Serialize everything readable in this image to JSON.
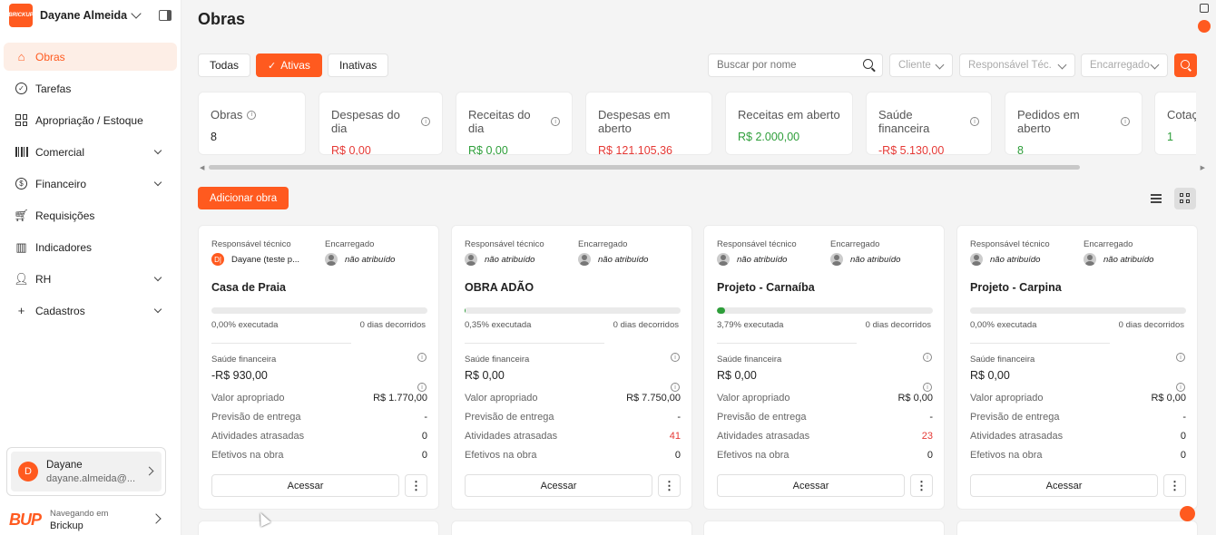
{
  "sidebar": {
    "user_name": "Dayane Almeida",
    "logo_text": "BRICKUP",
    "items": [
      {
        "label": "Obras",
        "icon": "building-icon",
        "active": true
      },
      {
        "label": "Tarefas",
        "icon": "check-circle-icon"
      },
      {
        "label": "Apropriação / Estoque",
        "icon": "grid-icon"
      },
      {
        "label": "Comercial",
        "icon": "barcode-icon",
        "expandable": true
      },
      {
        "label": "Financeiro",
        "icon": "dollar-circle-icon",
        "expandable": true
      },
      {
        "label": "Requisições",
        "icon": "cart-icon"
      },
      {
        "label": "Indicadores",
        "icon": "bar-chart-icon"
      },
      {
        "label": "RH",
        "icon": "person-icon",
        "expandable": true
      },
      {
        "label": "Cadastros",
        "icon": "plus-icon",
        "expandable": true
      }
    ],
    "profile": {
      "initial": "D",
      "name": "Dayane",
      "email": "dayane.almeida@..."
    },
    "brand": {
      "logo": "BUP",
      "sub": "Navegando em",
      "name": "Brickup"
    }
  },
  "header": {
    "title": "Obras"
  },
  "filters": {
    "tabs": [
      {
        "label": "Todas",
        "active": false
      },
      {
        "label": "Ativas",
        "active": true
      },
      {
        "label": "Inativas",
        "active": false
      }
    ],
    "search_placeholder": "Buscar por nome",
    "cliente": "Cliente",
    "responsavel": "Responsável Téc.",
    "encarregado": "Encarregado"
  },
  "stats": [
    {
      "label": "Obras",
      "value": "8",
      "color": "default",
      "info": true
    },
    {
      "label": "Despesas do dia",
      "value": "R$ 0,00",
      "color": "red",
      "info": true
    },
    {
      "label": "Receitas do dia",
      "value": "R$ 0,00",
      "color": "green",
      "info": true
    },
    {
      "label": "Despesas em aberto",
      "value": "R$ 121.105,36",
      "color": "red",
      "info": false
    },
    {
      "label": "Receitas em aberto",
      "value": "R$ 2.000,00",
      "color": "green",
      "info": false
    },
    {
      "label": "Saúde financeira",
      "value": "-R$ 5.130,00",
      "color": "red",
      "info": true
    },
    {
      "label": "Pedidos em aberto",
      "value": "8",
      "color": "green",
      "info": true
    },
    {
      "label": "Cotaç",
      "value": "1",
      "color": "green",
      "info": false
    }
  ],
  "actions": {
    "add_label": "Adicionar obra"
  },
  "card_labels": {
    "responsavel": "Responsável técnico",
    "encarregado": "Encarregado",
    "executada_suffix": "executada",
    "saude": "Saúde financeira",
    "valor": "Valor apropriado",
    "previsao": "Previsão de entrega",
    "atrasadas": "Atividades atrasadas",
    "efetivos": "Efetivos na obra",
    "acessar": "Acessar"
  },
  "cards": [
    {
      "responsavel": "Dayane (teste p...",
      "responsavel_initial": "D|",
      "encarregado": "não atribuído",
      "title": "Casa de Praia",
      "progress": 0.0,
      "executada": "0,00% executada",
      "dias": "0 dias decorridos",
      "saude": "-R$ 930,00",
      "saude_negative": true,
      "valor": "R$ 1.770,00",
      "previsao": "-",
      "atrasadas": "0",
      "atrasadas_alert": false,
      "efetivos": "0"
    },
    {
      "responsavel": "não atribuído",
      "responsavel_initial": "",
      "encarregado": "não atribuído",
      "title": "OBRA ADÃO",
      "progress": 0.35,
      "executada": "0,35% executada",
      "dias": "0 dias decorridos",
      "saude": "R$ 0,00",
      "saude_negative": false,
      "valor": "R$ 7.750,00",
      "previsao": "-",
      "atrasadas": "41",
      "atrasadas_alert": true,
      "efetivos": "0"
    },
    {
      "responsavel": "não atribuído",
      "responsavel_initial": "",
      "encarregado": "não atribuído",
      "title": "Projeto - Carnaíba",
      "progress": 3.79,
      "executada": "3,79% executada",
      "dias": "0 dias decorridos",
      "saude": "R$ 0,00",
      "saude_negative": false,
      "valor": "R$ 0,00",
      "previsao": "-",
      "atrasadas": "23",
      "atrasadas_alert": true,
      "efetivos": "0"
    },
    {
      "responsavel": "não atribuído",
      "responsavel_initial": "",
      "encarregado": "não atribuído",
      "title": "Projeto - Carpina",
      "progress": 0.0,
      "executada": "0,00% executada",
      "dias": "0 dias decorridos",
      "saude": "R$ 0,00",
      "saude_negative": false,
      "valor": "R$ 0,00",
      "previsao": "-",
      "atrasadas": "0",
      "atrasadas_alert": false,
      "efetivos": "0"
    }
  ]
}
